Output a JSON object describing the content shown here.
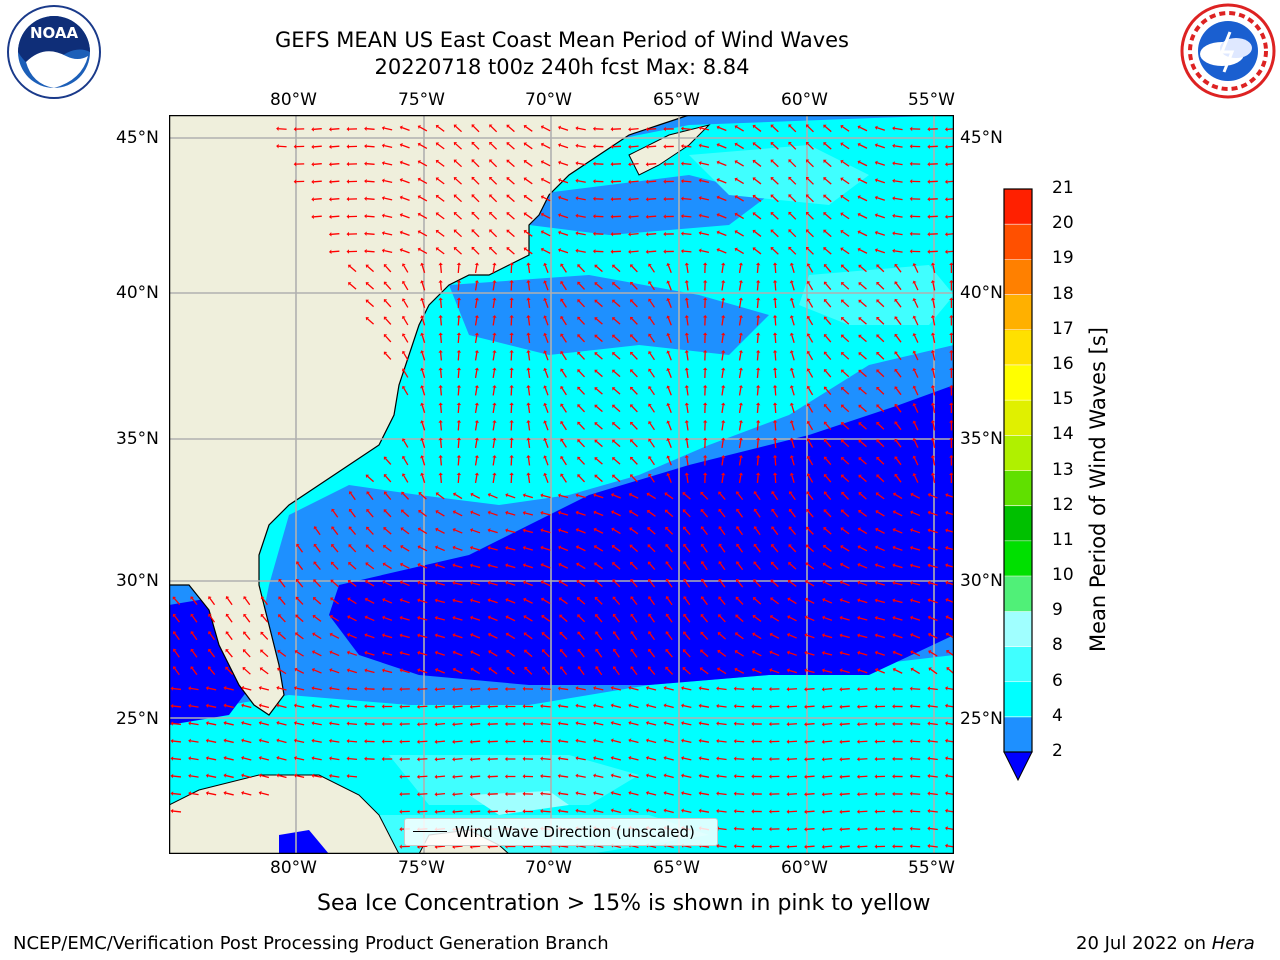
{
  "title": {
    "line1": "GEFS MEAN US East Coast Mean Period of Wind Waves",
    "line2": "20220718 t00z 240h fcst   Max: 8.84"
  },
  "logos": {
    "left": {
      "name": "noaa-logo",
      "text": "NOAA"
    },
    "right": {
      "name": "nws-logo"
    }
  },
  "map": {
    "lon_ticks": [
      "80°W",
      "75°W",
      "70°W",
      "65°W",
      "60°W",
      "55°W"
    ],
    "lat_ticks": [
      "45°N",
      "40°N",
      "35°N",
      "30°N",
      "25°N"
    ],
    "legend_label": "Wind Wave Direction (unscaled)",
    "colors": {
      "land": "#efefdc",
      "bin_2_4": "#1e90ff",
      "bin_4_6": "#00ffff",
      "bin_6_8": "#40ffff",
      "bin_8_9": "#a0ffff",
      "below_2": "#0000ff",
      "arrows": "#ff0000",
      "grid": "#b0b0b0"
    }
  },
  "colorbar": {
    "title": "Mean Period of Wind Waves [s]",
    "ticks": [
      "2",
      "4",
      "6",
      "8",
      "9",
      "10",
      "11",
      "12",
      "13",
      "14",
      "15",
      "16",
      "17",
      "18",
      "19",
      "20",
      "21"
    ],
    "colors": [
      "#1e90ff",
      "#00ffff",
      "#40ffff",
      "#a0ffff",
      "#50f078",
      "#00e000",
      "#00c000",
      "#60e000",
      "#b0f000",
      "#e0f000",
      "#ffff00",
      "#ffe000",
      "#ffb000",
      "#ff8000",
      "#ff5000",
      "#ff2000",
      "#ff0000"
    ],
    "under_color": "#0000ff"
  },
  "note": "Sea Ice Concentration > 15% is shown in pink to yellow",
  "footer": {
    "left": "NCEP/EMC/Verification Post Processing Product Generation Branch",
    "date": "20 Jul 2022 on ",
    "host": "Hera"
  }
}
